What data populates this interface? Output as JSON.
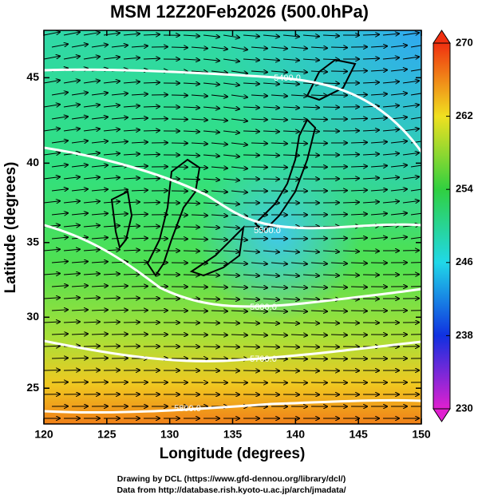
{
  "chart_data": {
    "type": "map",
    "title": "MSM 12Z20Feb2026 (500.0hPa)",
    "xlabel": "Longitude (degrees)",
    "ylabel": "Latitude  (degrees)",
    "projection": "mercator",
    "xlim": [
      120,
      150
    ],
    "xticks": [
      120,
      125,
      130,
      135,
      140,
      145,
      150
    ],
    "ylim": [
      22.4,
      47.6
    ],
    "yticks": [
      25,
      30,
      35,
      40,
      45
    ],
    "colorbar": {
      "range": [
        230,
        270
      ],
      "ticks": [
        230,
        238,
        246,
        254,
        262,
        270
      ],
      "colors": [
        "#e020d0",
        "#1030e0",
        "#20d8e8",
        "#30d040",
        "#f0e020",
        "#f03010"
      ]
    },
    "contours": [
      {
        "value": 5400,
        "label": "5400.0"
      },
      {
        "value": 5500,
        "label": "5500.0"
      },
      {
        "value": 5600,
        "label": "5600.0"
      },
      {
        "value": 5700,
        "label": "5700.0"
      },
      {
        "value": 5800,
        "label": "5800.0"
      }
    ],
    "footer": [
      "Drawing by DCL (https://www.gfd-dennou.org/library/dcl/)",
      "Data from http://database.rish.kyoto-u.ac.jp/arch/jmadata/"
    ]
  }
}
